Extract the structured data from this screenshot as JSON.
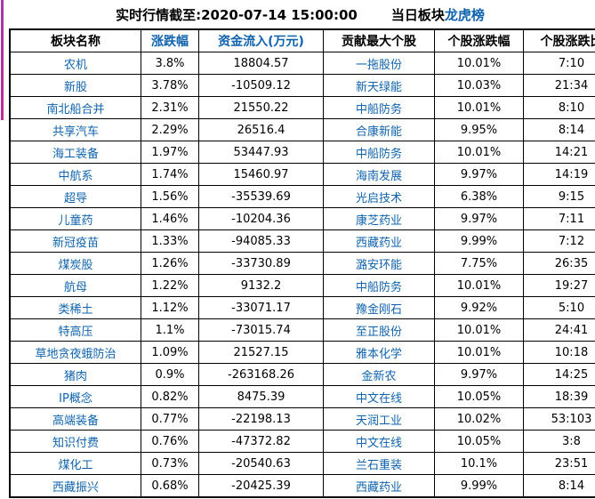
{
  "header": {
    "timestamp_label": "实时行情截至:2020-07-14 15:00:00",
    "board_label": "当日板块",
    "board_link": "龙虎榜"
  },
  "colors": {
    "link_blue": "#0f63ae",
    "table_border": "#000000",
    "accent_magenta": "#b5309e",
    "text": "#000000",
    "background": "#ffffff"
  },
  "table": {
    "headers": [
      {
        "label": "板块名称",
        "link": false
      },
      {
        "label": "涨跌幅",
        "link": true
      },
      {
        "label": "资金流入(万元)",
        "link": true
      },
      {
        "label": "贡献最大个股",
        "link": false
      },
      {
        "label": "个股涨跌幅",
        "link": false
      },
      {
        "label": "个股涨跌比",
        "link": false
      }
    ],
    "rows": [
      [
        "农机",
        "3.8%",
        "18804.57",
        "一拖股份",
        "10.01%",
        "7:10"
      ],
      [
        "新股",
        "3.78%",
        "-10509.12",
        "新天绿能",
        "10.03%",
        "21:34"
      ],
      [
        "南北船合并",
        "2.31%",
        "21550.22",
        "中船防务",
        "10.01%",
        "8:10"
      ],
      [
        "共享汽车",
        "2.29%",
        "26516.4",
        "合康新能",
        "9.95%",
        "8:14"
      ],
      [
        "海工装备",
        "1.97%",
        "53447.93",
        "中船防务",
        "10.01%",
        "14:21"
      ],
      [
        "中航系",
        "1.74%",
        "15460.97",
        "海南发展",
        "9.97%",
        "14:19"
      ],
      [
        "超导",
        "1.56%",
        "-35539.69",
        "光启技术",
        "6.38%",
        "9:15"
      ],
      [
        "儿童药",
        "1.46%",
        "-10204.36",
        "康芝药业",
        "9.97%",
        "7:11"
      ],
      [
        "新冠疫苗",
        "1.33%",
        "-94085.33",
        "西藏药业",
        "9.99%",
        "7:12"
      ],
      [
        "煤炭股",
        "1.26%",
        "-33730.89",
        "潞安环能",
        "7.75%",
        "26:35"
      ],
      [
        "航母",
        "1.22%",
        "9132.2",
        "中船防务",
        "10.01%",
        "19:27"
      ],
      [
        "类稀土",
        "1.12%",
        "-33071.17",
        "豫金刚石",
        "9.92%",
        "5:10"
      ],
      [
        "特高压",
        "1.1%",
        "-73015.74",
        "至正股份",
        "10.01%",
        "24:41"
      ],
      [
        "草地贪夜蛾防治",
        "1.09%",
        "21527.15",
        "雅本化学",
        "10.01%",
        "10:18"
      ],
      [
        "猪肉",
        "0.9%",
        "-263168.26",
        "金新农",
        "9.97%",
        "14:25"
      ],
      [
        "IP概念",
        "0.82%",
        "8475.39",
        "中文在线",
        "10.05%",
        "18:39"
      ],
      [
        "高端装备",
        "0.77%",
        "-22198.13",
        "天润工业",
        "10.02%",
        "53:103"
      ],
      [
        "知识付费",
        "0.76%",
        "-47372.82",
        "中文在线",
        "10.05%",
        "3:8"
      ],
      [
        "煤化工",
        "0.73%",
        "-20540.63",
        "兰石重装",
        "10.1%",
        "23:51"
      ],
      [
        "西藏振兴",
        "0.68%",
        "-20425.39",
        "西藏药业",
        "9.99%",
        "8:14"
      ]
    ]
  }
}
